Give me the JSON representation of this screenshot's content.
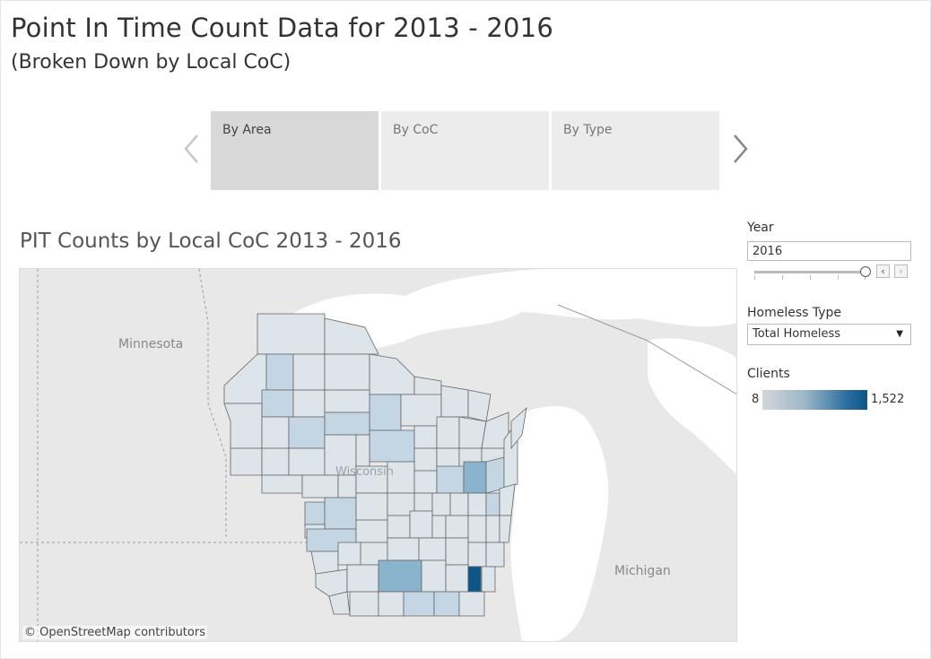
{
  "header": {
    "title": "Point In Time Count Data for 2013 - 2016",
    "subtitle": "(Broken Down by Local CoC)"
  },
  "story": {
    "points": [
      {
        "label": "By Area",
        "active": true
      },
      {
        "label": "By CoC",
        "active": false
      },
      {
        "label": "By Type",
        "active": false
      }
    ]
  },
  "map": {
    "title": "PIT Counts by Local CoC 2013 - 2016",
    "labels": {
      "minnesota": "Minnesota",
      "wisconsin": "Wisconsin",
      "michigan": "Michigan"
    },
    "attribution": "© OpenStreetMap contributors",
    "colors": {
      "water": "#ffffff",
      "land": "#e8e8e8",
      "low": "#dde4ea",
      "mid": "#c4d6e3",
      "high": "#8ab3ce",
      "max": "#0b5687"
    }
  },
  "filters": {
    "year": {
      "label": "Year",
      "value": "2016"
    },
    "homeless_type": {
      "label": "Homeless Type",
      "value": "Total Homeless"
    }
  },
  "legend": {
    "label": "Clients",
    "min": "8",
    "max": "1,522"
  }
}
